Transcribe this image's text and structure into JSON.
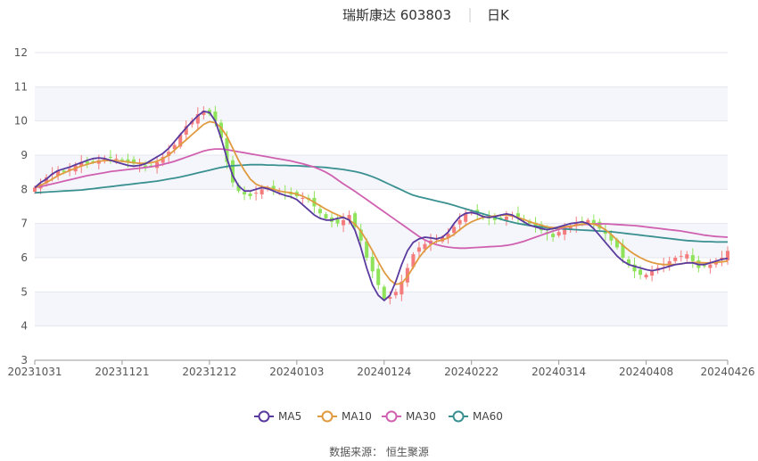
{
  "chart_data": {
    "type": "candlestick",
    "title": "瑞斯康达 603803",
    "period": "日K",
    "source": "数据来源： 恒生聚源",
    "ylim": [
      3,
      12
    ],
    "yticks": [
      3,
      4,
      5,
      6,
      7,
      8,
      9,
      10,
      11,
      12
    ],
    "x_tick_labels": [
      "20231031",
      "20231121",
      "20231212",
      "20240103",
      "20240124",
      "20240222",
      "20240314",
      "20240408",
      "20240426"
    ],
    "x_tick_index": [
      0,
      15,
      30,
      45,
      60,
      75,
      90,
      105,
      119
    ],
    "n_days": 120,
    "colors": {
      "up": "#f47c7c",
      "down": "#8fe35a",
      "MA5": "#5a3a9e",
      "MA10": "#e09a40",
      "MA30": "#d060b0",
      "MA60": "#3a9090"
    },
    "close": [
      8.05,
      8.15,
      8.35,
      8.45,
      8.55,
      8.5,
      8.6,
      8.7,
      8.8,
      8.75,
      8.8,
      8.85,
      8.9,
      8.95,
      8.9,
      8.85,
      8.8,
      8.75,
      8.7,
      8.65,
      8.7,
      8.8,
      8.95,
      9.1,
      9.3,
      9.6,
      9.85,
      10.0,
      10.2,
      10.3,
      10.2,
      10.0,
      9.5,
      8.8,
      8.2,
      7.95,
      7.85,
      7.8,
      7.9,
      8.0,
      8.05,
      8.0,
      7.95,
      7.9,
      7.85,
      7.8,
      7.75,
      7.7,
      7.5,
      7.3,
      7.15,
      7.05,
      7.0,
      7.1,
      7.25,
      6.9,
      6.5,
      6.0,
      5.6,
      5.2,
      4.8,
      4.85,
      5.0,
      5.3,
      5.7,
      6.1,
      6.3,
      6.4,
      6.5,
      6.55,
      6.6,
      6.7,
      6.9,
      7.1,
      7.3,
      7.35,
      7.3,
      7.2,
      7.15,
      7.1,
      7.15,
      7.2,
      7.25,
      7.2,
      7.1,
      7.0,
      6.9,
      6.8,
      6.7,
      6.6,
      6.75,
      6.85,
      6.9,
      7.0,
      7.05,
      7.1,
      7.0,
      6.85,
      6.7,
      6.5,
      6.3,
      6.0,
      5.8,
      5.6,
      5.5,
      5.5,
      5.6,
      5.7,
      5.8,
      5.9,
      6.0,
      6.05,
      6.1,
      5.9,
      5.7,
      5.75,
      5.8,
      5.9,
      6.0,
      6.2
    ],
    "ma5": [
      8.05,
      8.2,
      8.3,
      8.45,
      8.55,
      8.6,
      8.65,
      8.72,
      8.78,
      8.85,
      8.9,
      8.92,
      8.9,
      8.85,
      8.8,
      8.75,
      8.7,
      8.68,
      8.7,
      8.75,
      8.85,
      8.95,
      9.05,
      9.2,
      9.4,
      9.6,
      9.8,
      9.98,
      10.15,
      10.28,
      10.25,
      10.0,
      9.5,
      8.9,
      8.4,
      8.1,
      7.95,
      7.95,
      8.0,
      8.05,
      8.02,
      7.95,
      7.88,
      7.82,
      7.78,
      7.7,
      7.55,
      7.4,
      7.25,
      7.15,
      7.1,
      7.1,
      7.15,
      7.18,
      7.1,
      6.8,
      6.3,
      5.7,
      5.2,
      4.9,
      4.75,
      4.9,
      5.3,
      5.8,
      6.2,
      6.45,
      6.55,
      6.6,
      6.58,
      6.55,
      6.6,
      6.75,
      7.0,
      7.2,
      7.3,
      7.32,
      7.28,
      7.2,
      7.18,
      7.2,
      7.25,
      7.28,
      7.25,
      7.15,
      7.05,
      6.95,
      6.9,
      6.85,
      6.82,
      6.85,
      6.9,
      6.95,
      7.0,
      7.02,
      7.05,
      7.0,
      6.85,
      6.65,
      6.45,
      6.25,
      6.05,
      5.9,
      5.8,
      5.75,
      5.7,
      5.65,
      5.62,
      5.65,
      5.7,
      5.75,
      5.8,
      5.82,
      5.85,
      5.85,
      5.8,
      5.8,
      5.85,
      5.9,
      5.95,
      5.98
    ],
    "ma10": [
      8.05,
      8.12,
      8.2,
      8.3,
      8.4,
      8.48,
      8.55,
      8.62,
      8.68,
      8.73,
      8.78,
      8.82,
      8.84,
      8.85,
      8.84,
      8.82,
      8.8,
      8.78,
      8.76,
      8.76,
      8.78,
      8.82,
      8.9,
      9.0,
      9.15,
      9.3,
      9.45,
      9.6,
      9.75,
      9.9,
      9.98,
      9.95,
      9.8,
      9.55,
      9.2,
      8.85,
      8.55,
      8.3,
      8.15,
      8.08,
      8.05,
      8.0,
      7.95,
      7.92,
      7.9,
      7.86,
      7.8,
      7.72,
      7.62,
      7.52,
      7.42,
      7.33,
      7.25,
      7.18,
      7.1,
      6.98,
      6.78,
      6.5,
      6.2,
      5.88,
      5.58,
      5.35,
      5.22,
      5.25,
      5.45,
      5.72,
      6.0,
      6.22,
      6.38,
      6.48,
      6.52,
      6.58,
      6.68,
      6.82,
      6.95,
      7.05,
      7.12,
      7.18,
      7.2,
      7.22,
      7.24,
      7.25,
      7.22,
      7.18,
      7.12,
      7.05,
      7.0,
      6.95,
      6.9,
      6.88,
      6.88,
      6.9,
      6.92,
      6.95,
      6.98,
      7.0,
      6.98,
      6.92,
      6.82,
      6.68,
      6.52,
      6.36,
      6.22,
      6.1,
      6.0,
      5.92,
      5.86,
      5.82,
      5.8,
      5.8,
      5.8,
      5.82,
      5.85,
      5.86,
      5.86,
      5.85,
      5.85,
      5.86,
      5.88,
      5.9
    ],
    "ma30": [
      8.05,
      8.08,
      8.12,
      8.16,
      8.2,
      8.24,
      8.28,
      8.32,
      8.36,
      8.4,
      8.43,
      8.46,
      8.49,
      8.52,
      8.54,
      8.56,
      8.58,
      8.6,
      8.62,
      8.64,
      8.66,
      8.69,
      8.73,
      8.77,
      8.82,
      8.88,
      8.94,
      9.0,
      9.06,
      9.12,
      9.16,
      9.18,
      9.18,
      9.16,
      9.13,
      9.1,
      9.07,
      9.04,
      9.01,
      8.98,
      8.95,
      8.92,
      8.89,
      8.86,
      8.83,
      8.79,
      8.75,
      8.7,
      8.65,
      8.58,
      8.5,
      8.4,
      8.28,
      8.16,
      8.05,
      7.94,
      7.82,
      7.7,
      7.58,
      7.46,
      7.34,
      7.22,
      7.1,
      6.98,
      6.86,
      6.74,
      6.62,
      6.52,
      6.44,
      6.38,
      6.34,
      6.31,
      6.29,
      6.28,
      6.28,
      6.29,
      6.3,
      6.31,
      6.32,
      6.33,
      6.34,
      6.36,
      6.39,
      6.43,
      6.48,
      6.54,
      6.6,
      6.66,
      6.72,
      6.78,
      6.83,
      6.88,
      6.92,
      6.95,
      6.97,
      6.98,
      6.99,
      6.99,
      6.99,
      6.98,
      6.97,
      6.96,
      6.95,
      6.94,
      6.92,
      6.9,
      6.88,
      6.86,
      6.84,
      6.82,
      6.8,
      6.78,
      6.75,
      6.72,
      6.69,
      6.66,
      6.64,
      6.62,
      6.61,
      6.6
    ],
    "ma60": [
      7.9,
      7.91,
      7.92,
      7.93,
      7.94,
      7.95,
      7.96,
      7.97,
      7.98,
      8.0,
      8.02,
      8.04,
      8.06,
      8.08,
      8.1,
      8.12,
      8.14,
      8.16,
      8.18,
      8.2,
      8.22,
      8.24,
      8.27,
      8.3,
      8.33,
      8.36,
      8.4,
      8.44,
      8.48,
      8.52,
      8.56,
      8.6,
      8.64,
      8.67,
      8.69,
      8.7,
      8.71,
      8.72,
      8.72,
      8.72,
      8.71,
      8.71,
      8.7,
      8.7,
      8.69,
      8.69,
      8.68,
      8.67,
      8.66,
      8.65,
      8.64,
      8.62,
      8.6,
      8.58,
      8.55,
      8.52,
      8.48,
      8.43,
      8.37,
      8.3,
      8.22,
      8.14,
      8.06,
      7.98,
      7.9,
      7.83,
      7.78,
      7.74,
      7.7,
      7.66,
      7.62,
      7.58,
      7.53,
      7.48,
      7.43,
      7.38,
      7.33,
      7.28,
      7.23,
      7.18,
      7.13,
      7.08,
      7.04,
      7.0,
      6.97,
      6.94,
      6.92,
      6.9,
      6.88,
      6.86,
      6.85,
      6.84,
      6.83,
      6.82,
      6.81,
      6.8,
      6.79,
      6.78,
      6.77,
      6.76,
      6.74,
      6.72,
      6.7,
      6.68,
      6.66,
      6.64,
      6.62,
      6.6,
      6.58,
      6.56,
      6.54,
      6.52,
      6.5,
      6.49,
      6.48,
      6.47,
      6.47,
      6.46,
      6.46,
      6.46
    ],
    "series": [
      {
        "name": "MA5"
      },
      {
        "name": "MA10"
      },
      {
        "name": "MA30"
      },
      {
        "name": "MA60"
      }
    ],
    "legend_position": "bottom-center",
    "grid": true
  }
}
